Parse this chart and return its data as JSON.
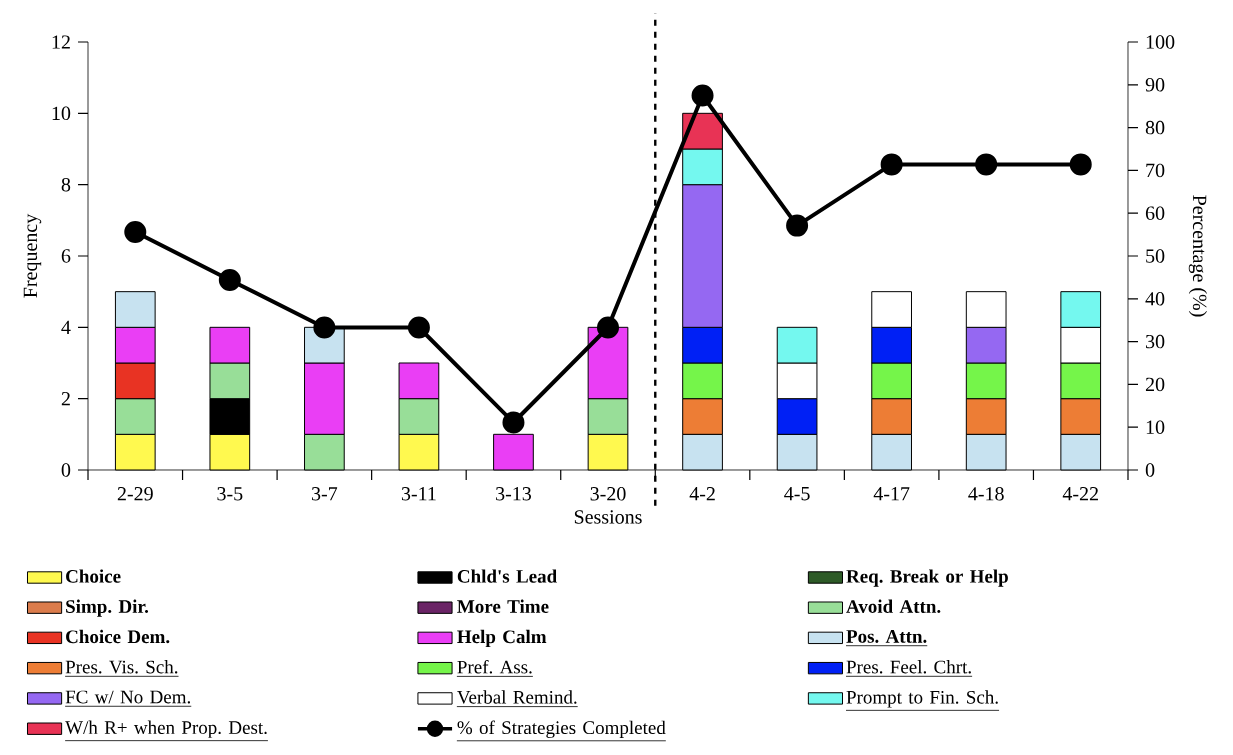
{
  "chart_data": {
    "type": "bar",
    "stacked": true,
    "xlabel": "Sessions",
    "ylabel": "Frequency",
    "y2label": "Percentage (%)",
    "categories": [
      "2-29",
      "3-5",
      "3-7",
      "3-11",
      "3-13",
      "3-20",
      "4-2",
      "4-5",
      "4-17",
      "4-18",
      "4-22"
    ],
    "ylim": [
      0,
      12
    ],
    "yticks": [
      0,
      2,
      4,
      6,
      8,
      10,
      12
    ],
    "y2lim": [
      0,
      100
    ],
    "y2ticks": [
      0,
      10,
      20,
      30,
      40,
      50,
      60,
      70,
      80,
      90,
      100
    ],
    "legend": "bottom",
    "grid": false,
    "series": [
      {
        "name": "Choice",
        "color": "#fff94f",
        "values": [
          1,
          1,
          null,
          1,
          null,
          1,
          null,
          null,
          null,
          null,
          null
        ]
      },
      {
        "name": "Chld's Lead",
        "color": "#000000",
        "values": [
          null,
          1,
          null,
          null,
          null,
          null,
          null,
          null,
          null,
          null,
          null
        ]
      },
      {
        "name": "Req. Break or Help",
        "color": "#2d5a27",
        "values": [
          null,
          null,
          null,
          null,
          null,
          null,
          null,
          null,
          null,
          null,
          null
        ]
      },
      {
        "name": "Simp. Dir.",
        "color": "#db7c4c",
        "values": [
          null,
          null,
          null,
          null,
          null,
          null,
          null,
          null,
          null,
          null,
          null
        ]
      },
      {
        "name": "More Time",
        "color": "#6b2466",
        "values": [
          null,
          null,
          null,
          null,
          null,
          null,
          null,
          null,
          null,
          null,
          null
        ]
      },
      {
        "name": "Avoid Attn.",
        "color": "#98de98",
        "values": [
          1,
          1,
          1,
          1,
          null,
          1,
          null,
          null,
          null,
          null,
          null
        ]
      },
      {
        "name": "Choice Dem.",
        "color": "#e83323",
        "values": [
          1,
          null,
          null,
          null,
          null,
          null,
          null,
          null,
          null,
          null,
          null
        ]
      },
      {
        "name": "Help Calm",
        "color": "#ea3ef5",
        "values": [
          1,
          1,
          2,
          1,
          1,
          2,
          null,
          null,
          null,
          null,
          null
        ]
      },
      {
        "name": "Pos. Attn.",
        "color": "#c7e2f0",
        "values": [
          1,
          null,
          1,
          null,
          null,
          null,
          1,
          1,
          1,
          1,
          1
        ]
      },
      {
        "name": "Pres. Vis. Sch.",
        "color": "#ed7d35",
        "values": [
          null,
          null,
          null,
          null,
          null,
          null,
          1,
          null,
          1,
          1,
          1
        ]
      },
      {
        "name": "Pref. Ass.",
        "color": "#75f54a",
        "values": [
          null,
          null,
          null,
          null,
          null,
          null,
          1,
          null,
          1,
          1,
          1
        ]
      },
      {
        "name": "Pres. Feel. Chrt.",
        "color": "#0020f5",
        "values": [
          null,
          null,
          null,
          null,
          null,
          null,
          1,
          1,
          1,
          null,
          null
        ]
      },
      {
        "name": "FC w/ No Dem.",
        "color": "#9568f2",
        "values": [
          null,
          null,
          null,
          null,
          null,
          null,
          4,
          null,
          null,
          1,
          null
        ]
      },
      {
        "name": "Verbal Remind.",
        "color": "#ffffff",
        "values": [
          null,
          null,
          null,
          null,
          null,
          null,
          null,
          1,
          1,
          1,
          1
        ]
      },
      {
        "name": "Prompt to Fin. Sch.",
        "color": "#74f8ef",
        "values": [
          null,
          null,
          null,
          null,
          null,
          null,
          1,
          1,
          null,
          null,
          1
        ]
      },
      {
        "name": "W/h R+ when Prop. Dest.",
        "color": "#e83355",
        "values": [
          null,
          null,
          null,
          null,
          null,
          null,
          1,
          null,
          null,
          null,
          null
        ]
      },
      {
        "name": "% of Strategies Completed",
        "type": "line",
        "axis": "y2",
        "color": "#000000",
        "marker": "circle",
        "line_style": "solid",
        "values": [
          55.6,
          44.4,
          33.3,
          33.3,
          11.1,
          33.3,
          87.5,
          57.1,
          71.4,
          71.4,
          71.4
        ]
      }
    ]
  }
}
